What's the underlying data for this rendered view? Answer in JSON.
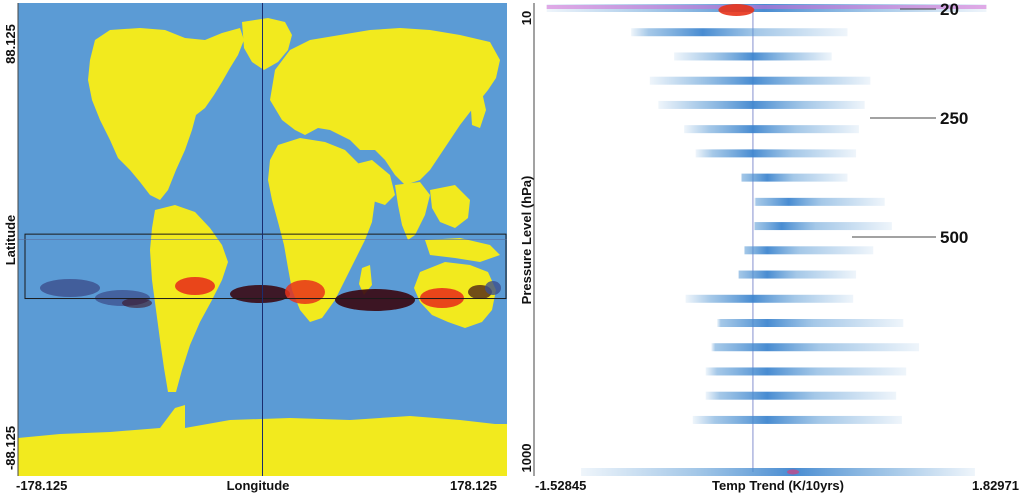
{
  "chart_data": [
    {
      "type": "heatmap",
      "title": "",
      "xlabel": "Longitude",
      "ylabel": "Latitude",
      "x_ticks": [
        "-178.125",
        "178.125"
      ],
      "y_ticks": [
        "88.125",
        "-88.125"
      ],
      "xlim": [
        -178.125,
        178.125
      ],
      "ylim": [
        -88.125,
        88.125
      ],
      "colors": {
        "ocean": "#5b9bd5",
        "land": "#f2ea1e",
        "anomaly_hot": "#e8331a",
        "anomaly_dark": "#3a0a14",
        "anomaly_blue": "#3c4f8c"
      },
      "selection_box": {
        "lat_range": [
          -22,
          2
        ],
        "lon_range": [
          -178.125,
          178.125
        ]
      },
      "crosshair": {
        "lon": 0,
        "lat": 0
      }
    },
    {
      "type": "scatter",
      "title": "",
      "xlabel": "Temp Trend (K/10yrs)",
      "ylabel": "Pressure Level (hPa)",
      "x_ticks": [
        "-1.52845",
        "1.82971"
      ],
      "y_ticks": [
        "10",
        "1000"
      ],
      "xlim": [
        -1.52845,
        1.82971
      ],
      "annotations": [
        "20",
        "250",
        "500"
      ],
      "series": [
        {
          "values": [
            {
              "level": 1,
              "min": -1.44,
              "max": 1.63,
              "peak": 0.08
            },
            {
              "level": 2,
              "min": -0.85,
              "max": 0.66,
              "peak": -0.35
            },
            {
              "level": 3,
              "min": -0.55,
              "max": 0.55,
              "peak": 0.0
            },
            {
              "level": 4,
              "min": -0.72,
              "max": 0.82,
              "peak": 0.0
            },
            {
              "level": 5,
              "min": -0.66,
              "max": 0.78,
              "peak": 0.0
            },
            {
              "level": 6,
              "min": -0.48,
              "max": 0.74,
              "peak": 0.0
            },
            {
              "level": 7,
              "min": -0.4,
              "max": 0.72,
              "peak": 0.0
            },
            {
              "level": 8,
              "min": -0.08,
              "max": 0.66,
              "peak": 0.1
            },
            {
              "level": 9,
              "min": 0.01,
              "max": 0.92,
              "peak": 0.25
            },
            {
              "level": 10,
              "min": 0.01,
              "max": 0.97,
              "peak": 0.2
            },
            {
              "level": 11,
              "min": -0.06,
              "max": 0.84,
              "peak": 0.1
            },
            {
              "level": 12,
              "min": -0.1,
              "max": 0.72,
              "peak": 0.1
            },
            {
              "level": 13,
              "min": -0.47,
              "max": 0.7,
              "peak": 0.0
            },
            {
              "level": 14,
              "min": -0.25,
              "max": 1.05,
              "peak": 0.1
            },
            {
              "level": 15,
              "min": -0.29,
              "max": 1.16,
              "peak": 0.1
            },
            {
              "level": 16,
              "min": -0.33,
              "max": 1.07,
              "peak": 0.1
            },
            {
              "level": 17,
              "min": -0.33,
              "max": 1.0,
              "peak": 0.1
            },
            {
              "level": 18,
              "min": -0.42,
              "max": 1.04,
              "peak": 0.1
            },
            {
              "level": 19,
              "min": -1.2,
              "max": 1.55,
              "peak": 0.28
            }
          ]
        }
      ],
      "reference_line_x": 0.0
    }
  ]
}
